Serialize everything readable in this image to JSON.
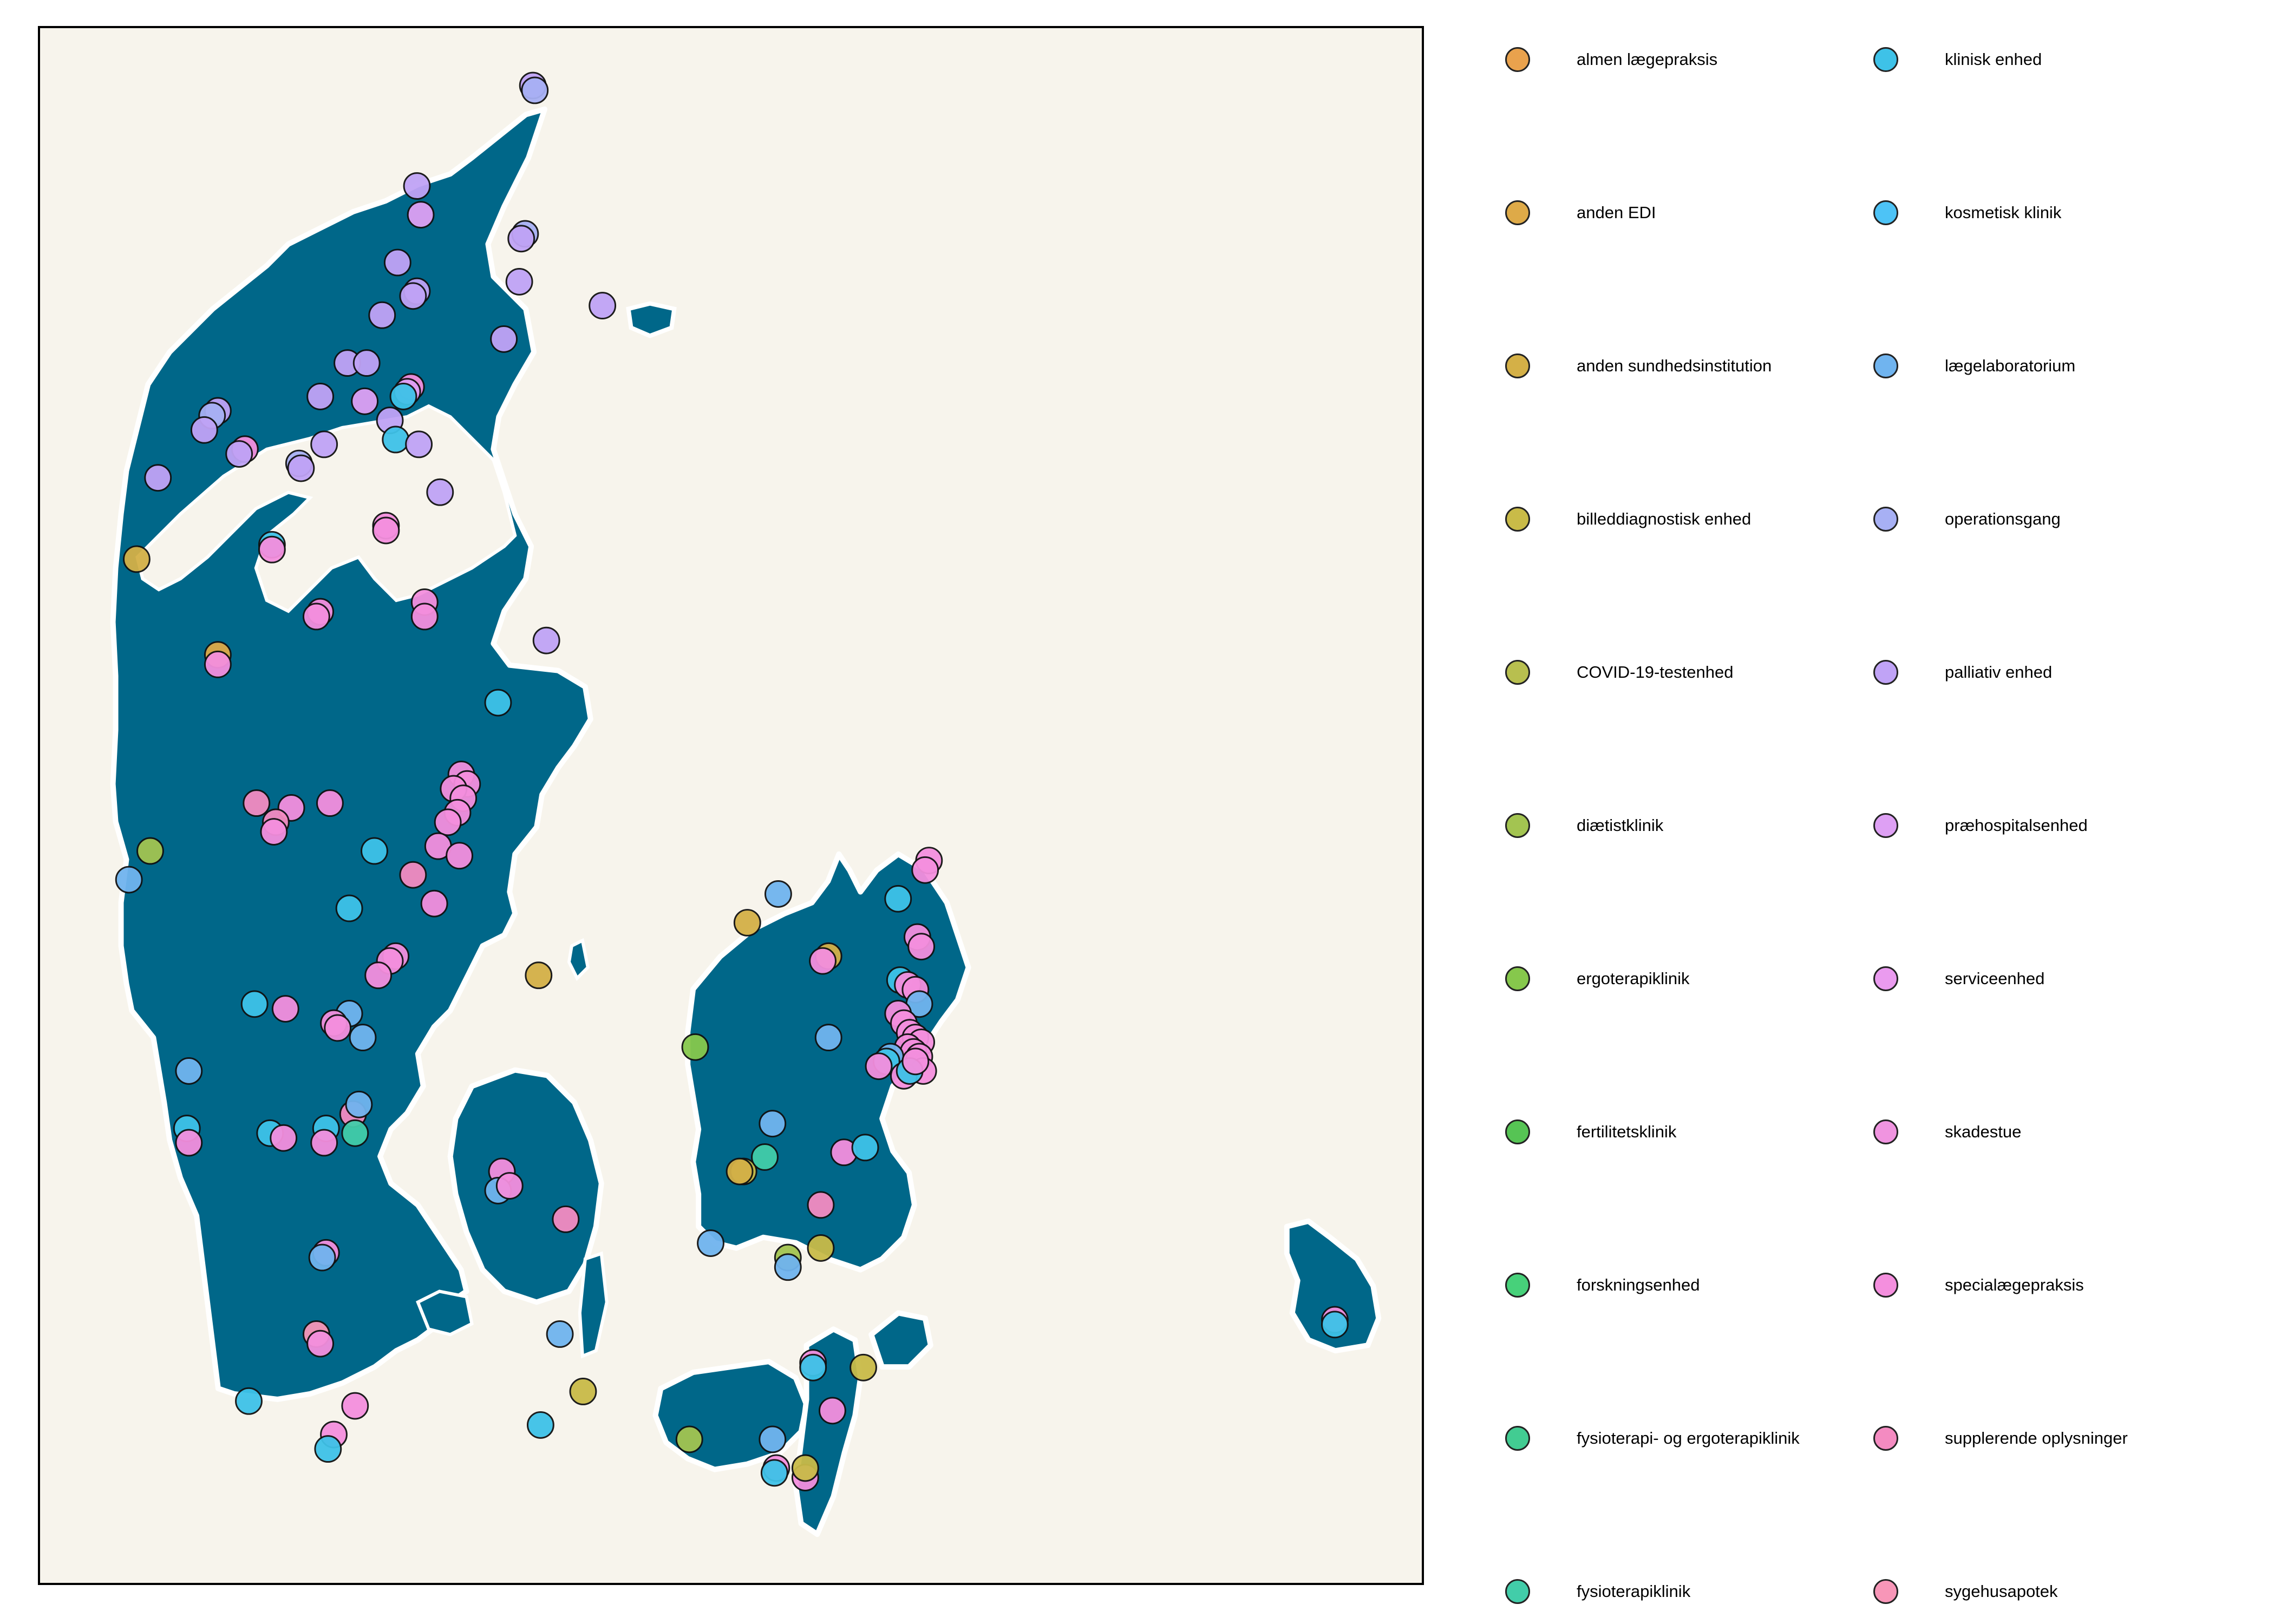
{
  "map": {
    "land_color": "#006789",
    "water_color": "#f7f4ec",
    "coast_color": "#ffffff",
    "points": [
      {
        "c": "palliativ enhed",
        "lon": 10.55,
        "lat": 57.68
      },
      {
        "c": "operationsgang",
        "lon": 10.56,
        "lat": 57.67
      },
      {
        "c": "palliativ enhed",
        "lon": 9.95,
        "lat": 57.47
      },
      {
        "c": "præhospitalsenhed",
        "lon": 9.97,
        "lat": 57.41
      },
      {
        "c": "operationsgang",
        "lon": 10.51,
        "lat": 57.37
      },
      {
        "c": "palliativ enhed",
        "lon": 10.49,
        "lat": 57.36
      },
      {
        "c": "palliativ enhed",
        "lon": 9.85,
        "lat": 57.31
      },
      {
        "c": "palliativ enhed",
        "lon": 10.48,
        "lat": 57.27
      },
      {
        "c": "palliativ enhed",
        "lon": 9.95,
        "lat": 57.25
      },
      {
        "c": "palliativ enhed",
        "lon": 9.93,
        "lat": 57.24
      },
      {
        "c": "palliativ enhed",
        "lon": 10.91,
        "lat": 57.22
      },
      {
        "c": "palliativ enhed",
        "lon": 9.77,
        "lat": 57.2
      },
      {
        "c": "palliativ enhed",
        "lon": 10.4,
        "lat": 57.15
      },
      {
        "c": "palliativ enhed",
        "lon": 9.59,
        "lat": 57.1
      },
      {
        "c": "palliativ enhed",
        "lon": 9.69,
        "lat": 57.1
      },
      {
        "c": "specialægepraksis",
        "lon": 9.92,
        "lat": 57.05
      },
      {
        "c": "præhospitalsenhed",
        "lon": 9.9,
        "lat": 57.04
      },
      {
        "c": "klinisk enhed",
        "lon": 9.88,
        "lat": 57.03
      },
      {
        "c": "palliativ enhed",
        "lon": 9.45,
        "lat": 57.03
      },
      {
        "c": "præhospitalsenhed",
        "lon": 9.68,
        "lat": 57.02
      },
      {
        "c": "palliativ enhed",
        "lon": 8.92,
        "lat": 57.0
      },
      {
        "c": "operationsgang",
        "lon": 8.89,
        "lat": 56.99
      },
      {
        "c": "palliativ enhed",
        "lon": 8.85,
        "lat": 56.96
      },
      {
        "c": "palliativ enhed",
        "lon": 9.81,
        "lat": 56.98
      },
      {
        "c": "klinisk enhed",
        "lon": 9.84,
        "lat": 56.94
      },
      {
        "c": "palliativ enhed",
        "lon": 9.96,
        "lat": 56.93
      },
      {
        "c": "palliativ enhed",
        "lon": 9.47,
        "lat": 56.93
      },
      {
        "c": "specialægepraksis",
        "lon": 9.06,
        "lat": 56.92
      },
      {
        "c": "palliativ enhed",
        "lon": 9.03,
        "lat": 56.91
      },
      {
        "c": "operationsgang",
        "lon": 9.34,
        "lat": 56.89
      },
      {
        "c": "palliativ enhed",
        "lon": 9.35,
        "lat": 56.88
      },
      {
        "c": "palliativ enhed",
        "lon": 8.61,
        "lat": 56.86
      },
      {
        "c": "palliativ enhed",
        "lon": 10.07,
        "lat": 56.83
      },
      {
        "c": "specialægepraksis",
        "lon": 9.79,
        "lat": 56.76
      },
      {
        "c": "specialægepraksis",
        "lon": 9.79,
        "lat": 56.75
      },
      {
        "c": "klinisk enhed",
        "lon": 9.2,
        "lat": 56.72
      },
      {
        "c": "specialægepraksis",
        "lon": 9.2,
        "lat": 56.71
      },
      {
        "c": "anden sundhedsinstitution",
        "lon": 8.5,
        "lat": 56.69
      },
      {
        "c": "specialægepraksis",
        "lon": 9.45,
        "lat": 56.58
      },
      {
        "c": "specialægepraksis",
        "lon": 9.43,
        "lat": 56.57
      },
      {
        "c": "specialægepraksis",
        "lon": 9.99,
        "lat": 56.6
      },
      {
        "c": "specialægepraksis",
        "lon": 9.99,
        "lat": 56.57
      },
      {
        "c": "palliativ enhed",
        "lon": 10.62,
        "lat": 56.52
      },
      {
        "c": "anden EDI",
        "lon": 8.92,
        "lat": 56.49
      },
      {
        "c": "specialægepraksis",
        "lon": 8.92,
        "lat": 56.47
      },
      {
        "c": "klinisk enhed",
        "lon": 10.37,
        "lat": 56.39
      },
      {
        "c": "specialægepraksis",
        "lon": 10.18,
        "lat": 56.24
      },
      {
        "c": "specialægepraksis",
        "lon": 10.21,
        "lat": 56.22
      },
      {
        "c": "specialægepraksis",
        "lon": 10.14,
        "lat": 56.21
      },
      {
        "c": "specialægepraksis",
        "lon": 10.19,
        "lat": 56.19
      },
      {
        "c": "specialægepraksis",
        "lon": 10.16,
        "lat": 56.16
      },
      {
        "c": "specialægepraksis",
        "lon": 10.11,
        "lat": 56.14
      },
      {
        "c": "supplerende oplysninger",
        "lon": 9.12,
        "lat": 56.18
      },
      {
        "c": "specialægepraksis",
        "lon": 9.5,
        "lat": 56.18
      },
      {
        "c": "specialægepraksis",
        "lon": 9.3,
        "lat": 56.17
      },
      {
        "c": "supplerende oplysninger",
        "lon": 9.22,
        "lat": 56.14
      },
      {
        "c": "specialægepraksis",
        "lon": 9.21,
        "lat": 56.12
      },
      {
        "c": "specialægepraksis",
        "lon": 10.06,
        "lat": 56.09
      },
      {
        "c": "specialægepraksis",
        "lon": 10.17,
        "lat": 56.07
      },
      {
        "c": "klinisk enhed",
        "lon": 9.73,
        "lat": 56.08
      },
      {
        "c": "diætistklinik",
        "lon": 8.57,
        "lat": 56.08
      },
      {
        "c": "lægelaboratorium",
        "lon": 8.46,
        "lat": 56.02
      },
      {
        "c": "supplerende oplysninger",
        "lon": 9.93,
        "lat": 56.03
      },
      {
        "c": "klinisk enhed",
        "lon": 9.6,
        "lat": 55.96
      },
      {
        "c": "specialægepraksis",
        "lon": 10.04,
        "lat": 55.97
      },
      {
        "c": "specialægepraksis",
        "lon": 9.84,
        "lat": 55.86
      },
      {
        "c": "specialægepraksis",
        "lon": 9.81,
        "lat": 55.85
      },
      {
        "c": "specialægepraksis",
        "lon": 9.75,
        "lat": 55.82
      },
      {
        "c": "anden sundhedsinstitution",
        "lon": 10.58,
        "lat": 55.82
      },
      {
        "c": "klinisk enhed",
        "lon": 9.11,
        "lat": 55.76
      },
      {
        "c": "specialægepraksis",
        "lon": 9.27,
        "lat": 55.75
      },
      {
        "c": "lægelaboratorium",
        "lon": 9.6,
        "lat": 55.74
      },
      {
        "c": "specialægepraksis",
        "lon": 9.52,
        "lat": 55.72
      },
      {
        "c": "specialægepraksis",
        "lon": 9.54,
        "lat": 55.71
      },
      {
        "c": "lægelaboratorium",
        "lon": 9.67,
        "lat": 55.69
      },
      {
        "c": "lægelaboratorium",
        "lon": 8.77,
        "lat": 55.62
      },
      {
        "c": "klinisk enhed",
        "lon": 8.76,
        "lat": 55.5
      },
      {
        "c": "specialægepraksis",
        "lon": 8.77,
        "lat": 55.47
      },
      {
        "c": "klinisk enhed",
        "lon": 9.19,
        "lat": 55.49
      },
      {
        "c": "specialægepraksis",
        "lon": 9.26,
        "lat": 55.48
      },
      {
        "c": "klinisk enhed",
        "lon": 9.48,
        "lat": 55.5
      },
      {
        "c": "specialægepraksis",
        "lon": 9.47,
        "lat": 55.47
      },
      {
        "c": "supplerende oplysninger",
        "lon": 9.62,
        "lat": 55.53
      },
      {
        "c": "fysioterapiklinik",
        "lon": 9.63,
        "lat": 55.49
      },
      {
        "c": "lægelaboratorium",
        "lon": 9.65,
        "lat": 55.55
      },
      {
        "c": "specialægepraksis",
        "lon": 10.39,
        "lat": 55.41
      },
      {
        "c": "lægelaboratorium",
        "lon": 10.37,
        "lat": 55.37
      },
      {
        "c": "specialægepraksis",
        "lon": 10.43,
        "lat": 55.38
      },
      {
        "c": "supplerende oplysninger",
        "lon": 10.72,
        "lat": 55.31
      },
      {
        "c": "specialægepraksis",
        "lon": 9.48,
        "lat": 55.24
      },
      {
        "c": "lægelaboratorium",
        "lon": 9.46,
        "lat": 55.23
      },
      {
        "c": "sygehusapotek",
        "lon": 9.43,
        "lat": 55.07
      },
      {
        "c": "specialægepraksis",
        "lon": 9.45,
        "lat": 55.05
      },
      {
        "c": "lægelaboratorium",
        "lon": 10.69,
        "lat": 55.07
      },
      {
        "c": "klinisk enhed",
        "lon": 9.08,
        "lat": 54.93
      },
      {
        "c": "specialægepraksis",
        "lon": 9.63,
        "lat": 54.92
      },
      {
        "c": "specialægepraksis",
        "lon": 9.52,
        "lat": 54.86
      },
      {
        "c": "klinisk enhed",
        "lon": 9.49,
        "lat": 54.83
      },
      {
        "c": "klinisk enhed",
        "lon": 10.59,
        "lat": 54.88
      },
      {
        "c": "billeddiagnostisk enhed",
        "lon": 10.81,
        "lat": 54.95
      },
      {
        "c": "lægelaboratorium",
        "lon": 11.82,
        "lat": 55.99
      },
      {
        "c": "anden sundhedsinstitution",
        "lon": 11.66,
        "lat": 55.93
      },
      {
        "c": "specialægepraksis",
        "lon": 12.6,
        "lat": 56.06
      },
      {
        "c": "specialægepraksis",
        "lon": 12.58,
        "lat": 56.04
      },
      {
        "c": "specialægepraksis",
        "lon": 12.54,
        "lat": 55.9
      },
      {
        "c": "specialægepraksis",
        "lon": 12.56,
        "lat": 55.88
      },
      {
        "c": "anden sundhedsinstitution",
        "lon": 12.08,
        "lat": 55.86
      },
      {
        "c": "specialægepraksis",
        "lon": 12.05,
        "lat": 55.85
      },
      {
        "c": "klinisk enhed",
        "lon": 12.45,
        "lat": 55.81
      },
      {
        "c": "specialægepraksis",
        "lon": 12.49,
        "lat": 55.8
      },
      {
        "c": "specialægepraksis",
        "lon": 12.53,
        "lat": 55.79
      },
      {
        "c": "lægelaboratorium",
        "lon": 12.55,
        "lat": 55.76
      },
      {
        "c": "specialægepraksis",
        "lon": 12.44,
        "lat": 55.74
      },
      {
        "c": "specialægepraksis",
        "lon": 12.47,
        "lat": 55.72
      },
      {
        "c": "specialægepraksis",
        "lon": 12.5,
        "lat": 55.7
      },
      {
        "c": "specialægepraksis",
        "lon": 12.53,
        "lat": 55.69
      },
      {
        "c": "specialægepraksis",
        "lon": 12.56,
        "lat": 55.68
      },
      {
        "c": "specialægepraksis",
        "lon": 12.49,
        "lat": 55.67
      },
      {
        "c": "specialægepraksis",
        "lon": 12.52,
        "lat": 55.66
      },
      {
        "c": "specialægepraksis",
        "lon": 12.55,
        "lat": 55.65
      },
      {
        "c": "lægelaboratorium",
        "lon": 12.4,
        "lat": 55.65
      },
      {
        "c": "klinisk enhed",
        "lon": 12.38,
        "lat": 55.64
      },
      {
        "c": "specialægepraksis",
        "lon": 12.34,
        "lat": 55.63
      },
      {
        "c": "specialægepraksis",
        "lon": 12.57,
        "lat": 55.62
      },
      {
        "c": "specialægepraksis",
        "lon": 12.47,
        "lat": 55.61
      },
      {
        "c": "lægelaboratorium",
        "lon": 12.08,
        "lat": 55.69
      },
      {
        "c": "ergoterapiklinik",
        "lon": 11.39,
        "lat": 55.67
      },
      {
        "c": "lægelaboratorium",
        "lon": 11.79,
        "lat": 55.51
      },
      {
        "c": "specialægepraksis",
        "lon": 12.16,
        "lat": 55.45
      },
      {
        "c": "klinisk enhed",
        "lon": 12.27,
        "lat": 55.46
      },
      {
        "c": "billeddiagnostisk enhed",
        "lon": 11.64,
        "lat": 55.41
      },
      {
        "c": "anden sundhedsinstitution",
        "lon": 11.62,
        "lat": 55.41
      },
      {
        "c": "fysioterapiklinik",
        "lon": 11.75,
        "lat": 55.44
      },
      {
        "c": "supplerende oplysninger",
        "lon": 12.04,
        "lat": 55.34
      },
      {
        "c": "lægelaboratorium",
        "lon": 11.47,
        "lat": 55.26
      },
      {
        "c": "diætistklinik",
        "lon": 11.87,
        "lat": 55.23
      },
      {
        "c": "lægelaboratorium",
        "lon": 11.87,
        "lat": 55.21
      },
      {
        "c": "billeddiagnostisk enhed",
        "lon": 12.04,
        "lat": 55.25
      },
      {
        "c": "specialægepraksis",
        "lon": 12.0,
        "lat": 55.01
      },
      {
        "c": "klinisk enhed",
        "lon": 12.0,
        "lat": 55.0
      },
      {
        "c": "billeddiagnostisk enhed",
        "lon": 12.26,
        "lat": 55.0
      },
      {
        "c": "specialægepraksis",
        "lon": 12.1,
        "lat": 54.91
      },
      {
        "c": "diætistklinik",
        "lon": 11.36,
        "lat": 54.85
      },
      {
        "c": "lægelaboratorium",
        "lon": 11.79,
        "lat": 54.85
      },
      {
        "c": "specialægepraksis",
        "lon": 11.81,
        "lat": 54.79
      },
      {
        "c": "klinisk enhed",
        "lon": 11.8,
        "lat": 54.78
      },
      {
        "c": "specialægepraksis",
        "lon": 11.96,
        "lat": 54.77
      },
      {
        "c": "billeddiagnostisk enhed",
        "lon": 11.96,
        "lat": 54.79
      },
      {
        "c": "specialægepraksis",
        "lon": 14.7,
        "lat": 55.1
      },
      {
        "c": "klinisk enhed",
        "lon": 14.7,
        "lat": 55.09
      },
      {
        "c": "klinisk enhed",
        "lon": 12.44,
        "lat": 55.98
      },
      {
        "c": "klinisk enhed",
        "lon": 12.5,
        "lat": 55.62
      },
      {
        "c": "specialægepraksis",
        "lon": 12.53,
        "lat": 55.64
      }
    ]
  },
  "legend": {
    "items": [
      {
        "label": "almen lægepraksis",
        "color": "#e9a24d"
      },
      {
        "label": "anden EDI",
        "color": "#deaa48"
      },
      {
        "label": "anden sundhedsinstitution",
        "color": "#d4b047"
      },
      {
        "label": "billeddiagnostisk enhed",
        "color": "#c9bb48"
      },
      {
        "label": "COVID-19-testenhed",
        "color": "#b8bf4f"
      },
      {
        "label": "diætistklinik",
        "color": "#a3c451"
      },
      {
        "label": "ergoterapiklinik",
        "color": "#86c84c"
      },
      {
        "label": "fertilitetsklinik",
        "color": "#56c454"
      },
      {
        "label": "forskningsenhed",
        "color": "#47d17a"
      },
      {
        "label": "fysioterapi- og ergoterapiklinik",
        "color": "#42cc92"
      },
      {
        "label": "fysioterapiklinik",
        "color": "#42cda9"
      },
      {
        "label": "klinisk enhed",
        "color": "#3ec2e8"
      },
      {
        "label": "kosmetisk klinik",
        "color": "#4dc3f6"
      },
      {
        "label": "lægelaboratorium",
        "color": "#70b4ef"
      },
      {
        "label": "operationsgang",
        "color": "#a7b0f4"
      },
      {
        "label": "palliativ enhed",
        "color": "#c0a3f6"
      },
      {
        "label": "præhospitalsenhed",
        "color": "#dea0f4"
      },
      {
        "label": "serviceenhed",
        "color": "#ea9bef"
      },
      {
        "label": "skadestue",
        "color": "#f094e0"
      },
      {
        "label": "specialægepraksis",
        "color": "#f48fde"
      },
      {
        "label": "supplerende oplysninger",
        "color": "#f48bc1"
      },
      {
        "label": "sygehusapotek",
        "color": "#f896b8"
      }
    ]
  }
}
